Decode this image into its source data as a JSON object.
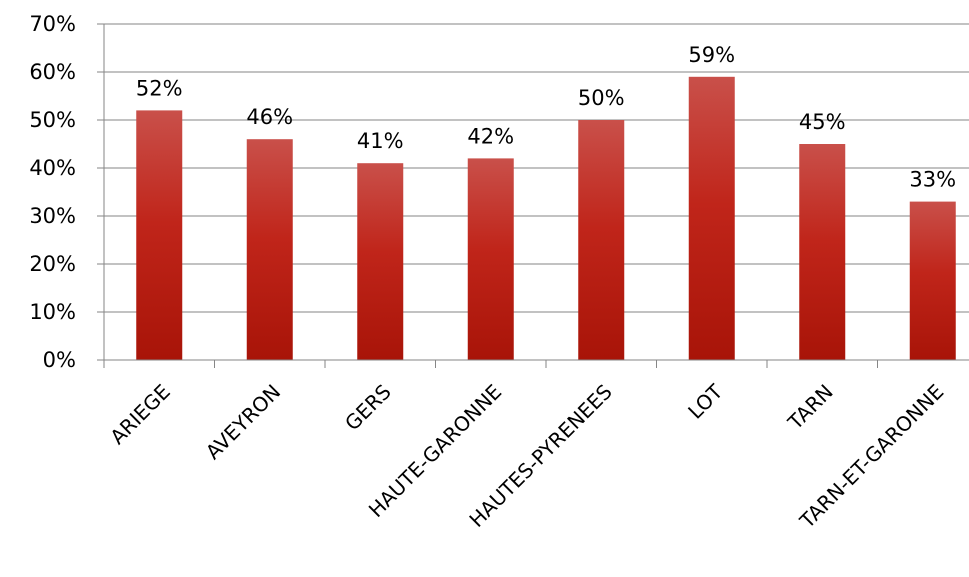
{
  "chart_data": {
    "type": "bar",
    "title": "",
    "xlabel": "",
    "ylabel": "",
    "categories": [
      "ARIEGE",
      "AVEYRON",
      "GERS",
      "HAUTE-GARONNE",
      "HAUTES-PYRENEES",
      "LOT",
      "TARN",
      "TARN-ET-GARONNE"
    ],
    "values": [
      52,
      46,
      41,
      42,
      50,
      59,
      45,
      33
    ],
    "data_labels": [
      "52%",
      "46%",
      "41%",
      "42%",
      "50%",
      "59%",
      "45%",
      "33%"
    ],
    "ylim": [
      0,
      70
    ],
    "yticks": [
      0,
      10,
      20,
      30,
      40,
      50,
      60,
      70
    ],
    "ytick_labels": [
      "0%",
      "10%",
      "20%",
      "30%",
      "40%",
      "50%",
      "60%",
      "70%"
    ],
    "grid": true,
    "legend": "none",
    "colors": {
      "bar_top": "#c9504a",
      "bar_mid": "#c0251a",
      "bar_bottom": "#a81408",
      "gridline": "#868686",
      "axis": "#868686"
    }
  }
}
